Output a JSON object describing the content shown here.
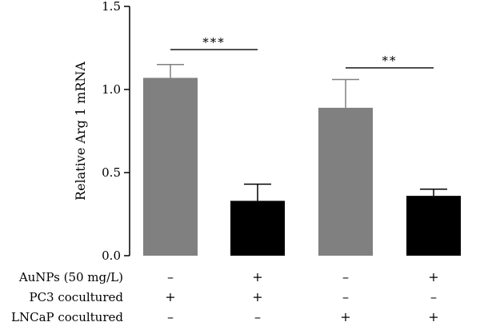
{
  "chart_data": {
    "type": "bar",
    "ylabel": "Relative Arg 1 mRNA",
    "ylim": [
      0,
      1.5
    ],
    "yticks": [
      0.0,
      0.5,
      1.0,
      1.5
    ],
    "ytick_labels": [
      "0.0",
      "0.5",
      "1.0",
      "1.5"
    ],
    "grid": false,
    "values": [
      1.07,
      0.33,
      0.89,
      0.36
    ],
    "errors": [
      0.08,
      0.1,
      0.17,
      0.04
    ],
    "bar_colors": [
      "#808080",
      "#000000",
      "#808080",
      "#000000"
    ],
    "conditions": [
      {
        "label": "AuNPs (50 mg/L)",
        "marks": [
          "–",
          "+",
          "–",
          "+"
        ]
      },
      {
        "label": "PC3 cocultured",
        "marks": [
          "+",
          "+",
          "–",
          "–"
        ]
      },
      {
        "label": "LNCaP cocultured",
        "marks": [
          "–",
          "–",
          "+",
          "+"
        ]
      }
    ],
    "significance": [
      {
        "from": 0,
        "to": 1,
        "label": "***",
        "y": 1.24
      },
      {
        "from": 2,
        "to": 3,
        "label": "**",
        "y": 1.13
      }
    ]
  }
}
